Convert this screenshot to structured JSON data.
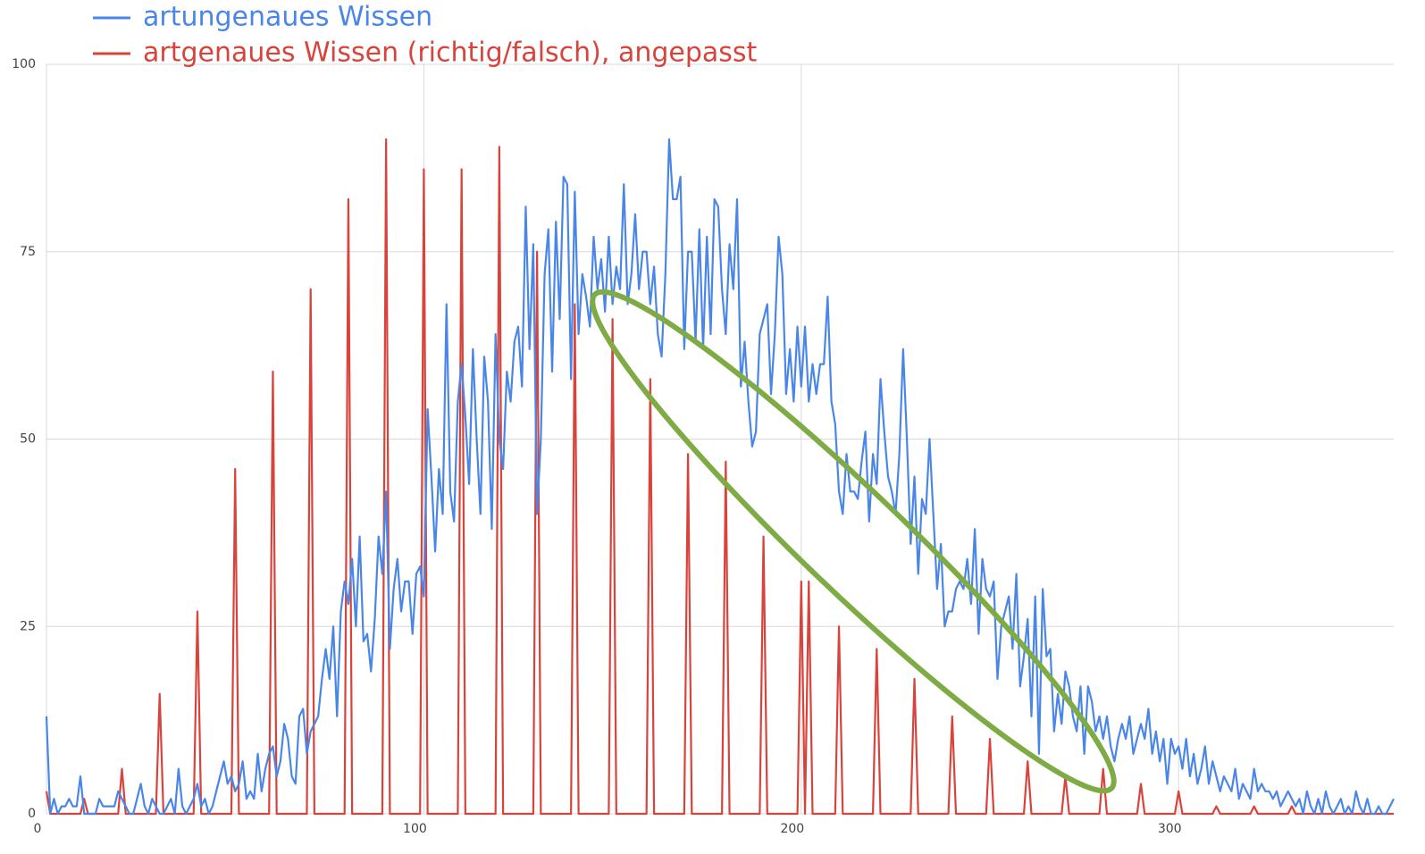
{
  "chart_data": {
    "type": "line",
    "x": [
      0,
      1,
      2,
      3,
      4,
      5,
      6,
      7,
      8,
      9,
      10,
      11,
      12,
      13,
      14,
      15,
      16,
      17,
      18,
      19,
      20,
      21,
      22,
      23,
      24,
      25,
      26,
      27,
      28,
      29,
      30,
      31,
      32,
      33,
      34,
      35,
      36,
      37,
      38,
      39,
      40,
      41,
      42,
      43,
      44,
      45,
      46,
      47,
      48,
      49,
      50,
      51,
      52,
      53,
      54,
      55,
      56,
      57,
      58,
      59,
      60,
      61,
      62,
      63,
      64,
      65,
      66,
      67,
      68,
      69,
      70,
      71,
      72,
      73,
      74,
      75,
      76,
      77,
      78,
      79,
      80,
      81,
      82,
      83,
      84,
      85,
      86,
      87,
      88,
      89,
      90,
      91,
      92,
      93,
      94,
      95,
      96,
      97,
      98,
      99,
      100,
      101,
      102,
      103,
      104,
      105,
      106,
      107,
      108,
      109,
      110,
      111,
      112,
      113,
      114,
      115,
      116,
      117,
      118,
      119,
      120,
      121,
      122,
      123,
      124,
      125,
      126,
      127,
      128,
      129,
      130,
      131,
      132,
      133,
      134,
      135,
      136,
      137,
      138,
      139,
      140,
      141,
      142,
      143,
      144,
      145,
      146,
      147,
      148,
      149,
      150,
      151,
      152,
      153,
      154,
      155,
      156,
      157,
      158,
      159,
      160,
      161,
      162,
      163,
      164,
      165,
      166,
      167,
      168,
      169,
      170,
      171,
      172,
      173,
      174,
      175,
      176,
      177,
      178,
      179,
      180,
      181,
      182,
      183,
      184,
      185,
      186,
      187,
      188,
      189,
      190,
      191,
      192,
      193,
      194,
      195,
      196,
      197,
      198,
      199,
      200,
      201,
      202,
      203,
      204,
      205,
      206,
      207,
      208,
      209,
      210,
      211,
      212,
      213,
      214,
      215,
      216,
      217,
      218,
      219,
      220,
      221,
      222,
      223,
      224,
      225,
      226,
      227,
      228,
      229,
      230,
      231,
      232,
      233,
      234,
      235,
      236,
      237,
      238,
      239,
      240,
      241,
      242,
      243,
      244,
      245,
      246,
      247,
      248,
      249,
      250,
      251,
      252,
      253,
      254,
      255,
      256,
      257,
      258,
      259,
      260,
      261,
      262,
      263,
      264,
      265,
      266,
      267,
      268,
      269,
      270,
      271,
      272,
      273,
      274,
      275,
      276,
      277,
      278,
      279,
      280,
      281,
      282,
      283,
      284,
      285,
      286,
      287,
      288,
      289,
      290,
      291,
      292,
      293,
      294,
      295,
      296,
      297,
      298,
      299,
      300,
      301,
      302,
      303,
      304,
      305,
      306,
      307,
      308,
      309,
      310,
      311,
      312,
      313,
      314,
      315,
      316,
      317,
      318,
      319,
      320,
      321,
      322,
      323,
      324,
      325,
      326,
      327,
      328,
      329,
      330,
      331,
      332,
      333,
      334,
      335,
      336,
      337,
      338,
      339,
      340,
      341,
      342,
      343,
      344,
      345,
      346,
      347,
      348,
      349,
      350,
      351,
      352,
      353,
      354,
      355,
      356,
      357
    ],
    "series": [
      {
        "name": "artungenaues Wissen",
        "color": "#4a86e8",
        "values": [
          13,
          0,
          2,
          0,
          1,
          1,
          2,
          1,
          1,
          5,
          0,
          0,
          0,
          0,
          2,
          1,
          1,
          1,
          1,
          3,
          2,
          1,
          0,
          0,
          2,
          4,
          1,
          0,
          2,
          1,
          0,
          0,
          1,
          2,
          0,
          6,
          1,
          0,
          1,
          2,
          4,
          1,
          2,
          0,
          1,
          3,
          5,
          7,
          4,
          5,
          3,
          4,
          7,
          2,
          3,
          2,
          8,
          3,
          6,
          8,
          9,
          5,
          7,
          12,
          10,
          5,
          4,
          13,
          14,
          8,
          11,
          12,
          13,
          18,
          22,
          18,
          25,
          13,
          27,
          31,
          28,
          34,
          25,
          37,
          23,
          24,
          19,
          26,
          37,
          32,
          43,
          22,
          30,
          34,
          27,
          31,
          31,
          24,
          32,
          33,
          29,
          54,
          45,
          35,
          46,
          40,
          68,
          43,
          39,
          55,
          60,
          53,
          44,
          62,
          50,
          40,
          61,
          55,
          38,
          64,
          50,
          46,
          59,
          55,
          63,
          65,
          57,
          81,
          62,
          76,
          40,
          50,
          72,
          78,
          59,
          79,
          66,
          85,
          84,
          58,
          83,
          64,
          72,
          69,
          65,
          77,
          70,
          74,
          67,
          77,
          68,
          73,
          70,
          84,
          68,
          72,
          80,
          70,
          75,
          75,
          68,
          73,
          64,
          61,
          72,
          90,
          82,
          82,
          85,
          62,
          75,
          75,
          63,
          78,
          62,
          77,
          64,
          82,
          81,
          70,
          64,
          76,
          70,
          82,
          57,
          63,
          55,
          49,
          51,
          64,
          66,
          68,
          56,
          64,
          77,
          72,
          56,
          62,
          55,
          65,
          57,
          65,
          55,
          60,
          56,
          60,
          60,
          69,
          55,
          52,
          43,
          40,
          48,
          43,
          43,
          42,
          47,
          51,
          39,
          48,
          44,
          58,
          51,
          45,
          43,
          40,
          48,
          62,
          50,
          36,
          45,
          32,
          42,
          40,
          50,
          40,
          30,
          36,
          25,
          27,
          27,
          30,
          31,
          30,
          34,
          28,
          38,
          24,
          34,
          30,
          29,
          31,
          18,
          25,
          27,
          29,
          22,
          32,
          17,
          21,
          26,
          13,
          29,
          8,
          30,
          21,
          22,
          11,
          16,
          12,
          19,
          17,
          13,
          11,
          17,
          8,
          17,
          15,
          11,
          13,
          10,
          13,
          9,
          7,
          10,
          12,
          10,
          13,
          8,
          10,
          12,
          10,
          14,
          8,
          11,
          7,
          10,
          4,
          10,
          8,
          9,
          6,
          10,
          5,
          8,
          4,
          6,
          9,
          4,
          7,
          5,
          3,
          5,
          4,
          3,
          6,
          2,
          4,
          3,
          2,
          6,
          3,
          4,
          3,
          3,
          2,
          3,
          1,
          2,
          3,
          2,
          1,
          2,
          0,
          3,
          1,
          0,
          2,
          0,
          3,
          1,
          0,
          1,
          2,
          0,
          1,
          0,
          3,
          1,
          0,
          2,
          0,
          0,
          1,
          0,
          0,
          1,
          2
        ]
      },
      {
        "name": "artgenaues Wissen (richtig/falsch), angepasst",
        "color": "#d8433b",
        "values": [
          3,
          0,
          0,
          0,
          0,
          0,
          0,
          0,
          0,
          0,
          2,
          0,
          0,
          0,
          0,
          0,
          0,
          0,
          0,
          0,
          6,
          0,
          0,
          0,
          0,
          0,
          0,
          0,
          0,
          0,
          16,
          0,
          0,
          0,
          0,
          0,
          0,
          0,
          0,
          0,
          27,
          0,
          0,
          0,
          0,
          0,
          0,
          0,
          0,
          0,
          46,
          0,
          0,
          0,
          0,
          0,
          0,
          0,
          0,
          0,
          59,
          0,
          0,
          0,
          0,
          0,
          0,
          0,
          0,
          0,
          70,
          0,
          0,
          0,
          0,
          0,
          0,
          0,
          0,
          0,
          82,
          0,
          0,
          0,
          0,
          0,
          0,
          0,
          0,
          0,
          90,
          0,
          0,
          0,
          0,
          0,
          0,
          0,
          0,
          0,
          86,
          0,
          0,
          0,
          0,
          0,
          0,
          0,
          0,
          0,
          86,
          0,
          0,
          0,
          0,
          0,
          0,
          0,
          0,
          0,
          89,
          0,
          0,
          0,
          0,
          0,
          0,
          0,
          0,
          0,
          75,
          0,
          0,
          0,
          0,
          0,
          0,
          0,
          0,
          0,
          68,
          0,
          0,
          0,
          0,
          0,
          0,
          0,
          0,
          0,
          66,
          0,
          0,
          0,
          0,
          0,
          0,
          0,
          0,
          0,
          58,
          0,
          0,
          0,
          0,
          0,
          0,
          0,
          0,
          0,
          48,
          0,
          0,
          0,
          0,
          0,
          0,
          0,
          0,
          0,
          47,
          0,
          0,
          0,
          0,
          0,
          0,
          0,
          0,
          0,
          37,
          0,
          0,
          0,
          0,
          0,
          0,
          0,
          0,
          0,
          31,
          0,
          31,
          0,
          0,
          0,
          0,
          0,
          0,
          0,
          25,
          0,
          0,
          0,
          0,
          0,
          0,
          0,
          0,
          0,
          22,
          0,
          0,
          0,
          0,
          0,
          0,
          0,
          0,
          0,
          18,
          0,
          0,
          0,
          0,
          0,
          0,
          0,
          0,
          0,
          13,
          0,
          0,
          0,
          0,
          0,
          0,
          0,
          0,
          0,
          10,
          0,
          0,
          0,
          0,
          0,
          0,
          0,
          0,
          0,
          7,
          0,
          0,
          0,
          0,
          0,
          0,
          0,
          0,
          0,
          5,
          0,
          0,
          0,
          0,
          0,
          0,
          0,
          0,
          0,
          6,
          0,
          0,
          0,
          0,
          0,
          0,
          0,
          0,
          0,
          4,
          0,
          0,
          0,
          0,
          0,
          0,
          0,
          0,
          0,
          3,
          0,
          0,
          0,
          0,
          0,
          0,
          0,
          0,
          0,
          1,
          0,
          0,
          0,
          0,
          0,
          0,
          0,
          0,
          0,
          1,
          0,
          0,
          0,
          0,
          0,
          0,
          0,
          0,
          0,
          1,
          0,
          0,
          0,
          0,
          0,
          0,
          0,
          0,
          0,
          0,
          0,
          0,
          0,
          0,
          0,
          0,
          0,
          0,
          0,
          0,
          0,
          0,
          0,
          0,
          0,
          0,
          0
        ]
      }
    ],
    "xlim": [
      0,
      357
    ],
    "ylim": [
      0,
      100
    ],
    "xticks": [
      0,
      100,
      200,
      300
    ],
    "yticks": [
      0,
      25,
      50,
      75,
      100
    ],
    "grid": true,
    "legend": "top-left"
  }
}
